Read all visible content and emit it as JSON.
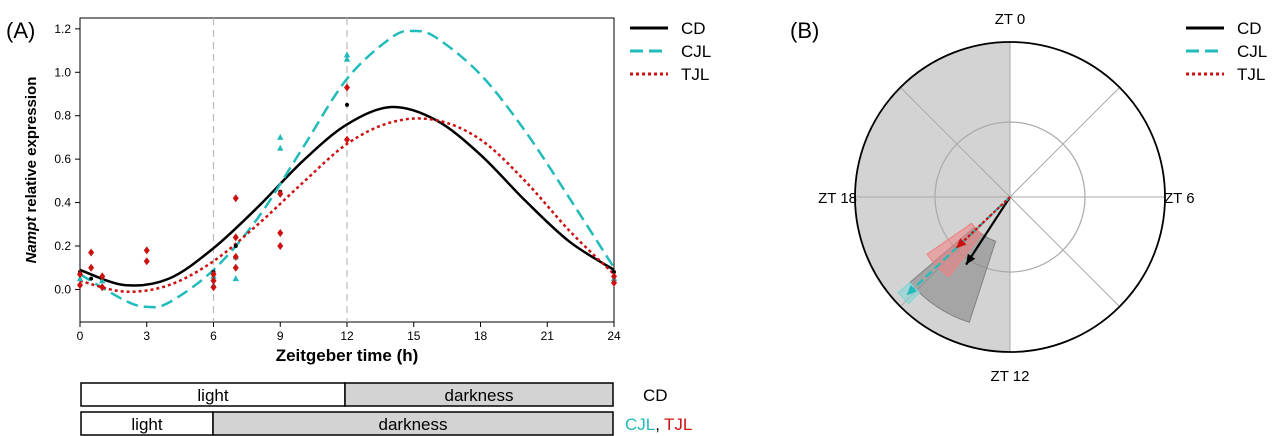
{
  "panel_a": {
    "label": "(A)",
    "ylabel_italic": "Nampt",
    "ylabel_rest": " relative expression",
    "xlabel": "Zeitgeber time (h)",
    "legend": [
      "CD",
      "CJL",
      "TJL"
    ]
  },
  "panel_b": {
    "label": "(B)",
    "dir_labels": [
      "ZT 0",
      "ZT 6",
      "ZT 12",
      "ZT 18"
    ],
    "legend": [
      "CD",
      "CJL",
      "TJL"
    ]
  },
  "light_bars": {
    "cd": {
      "light": "light",
      "dark": "darkness",
      "label": "CD"
    },
    "jl": {
      "light": "light",
      "dark": "darkness",
      "label_cjl": "CJL",
      "sep": ",",
      "label_tjl": "TJL"
    }
  },
  "colors": {
    "CD": "#000000",
    "CJL": "#22bbbb",
    "TJL": "#cc1111",
    "light": "#ffffff",
    "dark": "#d3d3d3"
  },
  "chart_data": [
    {
      "type": "line",
      "title": "",
      "xlabel": "Zeitgeber time (h)",
      "ylabel": "Nampt relative expression",
      "xlim": [
        0,
        24
      ],
      "ylim": [
        -0.15,
        1.25
      ],
      "xticks": [
        0,
        3,
        6,
        9,
        12,
        15,
        18,
        21,
        24
      ],
      "yticks": [
        0.0,
        0.2,
        0.4,
        0.6,
        0.8,
        1.0,
        1.2
      ],
      "vlines": [
        6,
        12
      ],
      "legend_position": "top-right",
      "series": [
        {
          "name": "CD",
          "style": "solid",
          "x": [
            0,
            2,
            4,
            6,
            8,
            10,
            12,
            14,
            16,
            18,
            20,
            22,
            24
          ],
          "y": [
            0.09,
            0.02,
            0.05,
            0.19,
            0.38,
            0.59,
            0.76,
            0.84,
            0.78,
            0.62,
            0.41,
            0.22,
            0.09
          ]
        },
        {
          "name": "CJL",
          "style": "dashed",
          "x": [
            0,
            2,
            3,
            4,
            6,
            8,
            10,
            12,
            14,
            15,
            16,
            18,
            20,
            22,
            24
          ],
          "y": [
            0.07,
            -0.05,
            -0.08,
            -0.06,
            0.09,
            0.33,
            0.65,
            0.97,
            1.16,
            1.19,
            1.16,
            0.99,
            0.73,
            0.42,
            0.1
          ]
        },
        {
          "name": "TJL",
          "style": "dotted",
          "x": [
            0,
            2,
            4,
            6,
            8,
            10,
            12,
            14,
            16,
            18,
            20,
            22,
            24
          ],
          "y": [
            0.04,
            -0.01,
            0.02,
            0.13,
            0.3,
            0.49,
            0.67,
            0.77,
            0.78,
            0.69,
            0.5,
            0.27,
            0.07
          ]
        }
      ],
      "points": [
        {
          "series": "CD",
          "x": [
            0,
            0.5,
            1,
            6,
            7,
            9,
            12,
            24
          ],
          "y": [
            0.08,
            0.05,
            0.04,
            0.08,
            0.2,
            0.45,
            0.85,
            0.08
          ]
        },
        {
          "series": "CJL",
          "x": [
            0,
            1,
            6,
            6,
            7,
            7,
            9,
            9,
            12,
            12,
            24
          ],
          "y": [
            0.05,
            0.04,
            0.06,
            0.02,
            0.05,
            0.15,
            0.7,
            0.65,
            1.08,
            1.06,
            0.05
          ]
        },
        {
          "series": "TJL",
          "x": [
            0,
            0,
            0.5,
            0.5,
            1,
            1,
            3,
            3,
            6,
            6,
            6,
            7,
            7,
            7,
            7,
            9,
            9,
            9,
            12,
            12,
            24,
            24
          ],
          "y": [
            0.07,
            0.02,
            0.17,
            0.1,
            0.06,
            0.01,
            0.18,
            0.13,
            0.07,
            0.04,
            0.01,
            0.42,
            0.24,
            0.15,
            0.1,
            0.44,
            0.26,
            0.2,
            0.93,
            0.69,
            0.06,
            0.03
          ]
        }
      ]
    },
    {
      "type": "scatter",
      "subtype": "polar-clock",
      "title": "",
      "angular_unit": "ZT (h)",
      "angular_ticks": [
        "ZT 0",
        "ZT 6",
        "ZT 12",
        "ZT 18"
      ],
      "shaded_half": "ZT 12 to ZT 24",
      "rlim": [
        0,
        1
      ],
      "inner_circle_r": 0.45,
      "legend_position": "top-right",
      "series": [
        {
          "name": "CD",
          "phase_zt": 14.2,
          "length": 0.52,
          "phase_ci": [
            13.2,
            15.3
          ],
          "length_ci": [
            0.3,
            0.85
          ]
        },
        {
          "name": "CJL",
          "phase_zt": 15.1,
          "length": 0.92,
          "phase_ci": [
            14.9,
            15.3
          ],
          "length_ci": [
            0.85,
            0.95
          ]
        },
        {
          "name": "TJL",
          "phase_zt": 15.1,
          "length": 0.48,
          "phase_ci": [
            14.5,
            15.7
          ],
          "length_ci": [
            0.3,
            0.65
          ]
        }
      ]
    }
  ]
}
